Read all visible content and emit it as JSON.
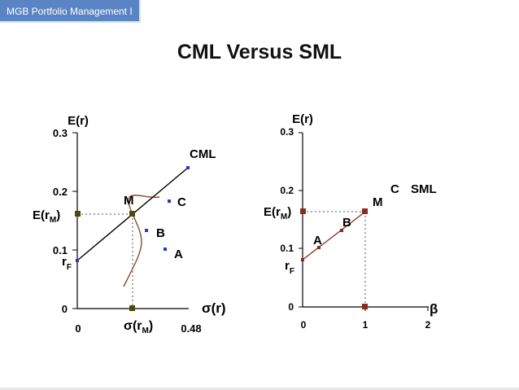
{
  "header": {
    "tag": "MGB Portfolio Management I"
  },
  "title": "CML Versus SML",
  "colors": {
    "tag_bg": "#5b84c4",
    "marker_blue": "#1f3cba",
    "curve": "#8b4a2a",
    "sml_line": "#8b3a28",
    "marker_olive": "#4a4a0c",
    "marker_red": "#8b2c1a"
  },
  "chart_data": [
    {
      "type": "line",
      "ylabel": "E(r)",
      "xlabel": "σ(r)",
      "yticks": [
        "0",
        "0.1",
        "0.2",
        "0.3"
      ],
      "xticks": [
        "0",
        "0.48"
      ],
      "ylim": [
        0,
        0.3
      ],
      "xlim": [
        0,
        0.48
      ],
      "rf": 0.083,
      "market": {
        "sigma": 0.2,
        "er": 0.16
      },
      "cml_end": {
        "sigma": 0.403,
        "er": 0.241
      },
      "frontier": [
        {
          "sigma": 0.2,
          "er": 0.04
        },
        {
          "sigma": 0.225,
          "er": 0.06
        },
        {
          "sigma": 0.22,
          "er": 0.1
        },
        {
          "sigma": 0.2,
          "er": 0.16
        },
        {
          "sigma": 0.215,
          "er": 0.182
        },
        {
          "sigma": 0.24,
          "er": 0.19
        }
      ],
      "points": [
        {
          "name": "M",
          "sigma": 0.2,
          "er": 0.16
        },
        {
          "name": "B",
          "sigma": 0.25,
          "er": 0.13
        },
        {
          "name": "C",
          "sigma": 0.32,
          "er": 0.182
        },
        {
          "name": "A",
          "sigma": 0.31,
          "er": 0.1
        }
      ],
      "labels": {
        "cml": "CML",
        "m": "M",
        "a": "A",
        "b": "B",
        "c": "C",
        "er_m": "E(r",
        "er_m_sub": "M",
        "er_m_close": ")",
        "rf": "r",
        "rf_sub": "F",
        "sigma_m": "σ(r",
        "sigma_m_sub": "M",
        "sigma_m_close": ")"
      }
    },
    {
      "type": "line",
      "ylabel": "E(r)",
      "xlabel": "β",
      "yticks": [
        "0",
        "0.1",
        "0.2",
        "0.3"
      ],
      "xticks": [
        "0",
        "1",
        "2"
      ],
      "ylim": [
        0,
        0.3
      ],
      "xlim": [
        0,
        2
      ],
      "rf": 0.08,
      "market": {
        "beta": 1,
        "er": 0.16
      },
      "points": [
        {
          "name": "A",
          "beta": 0.25,
          "er": 0.1
        },
        {
          "name": "B",
          "beta": 0.63,
          "er": 0.135
        },
        {
          "name": "M",
          "beta": 1,
          "er": 0.16
        }
      ],
      "labels": {
        "sml": "SML",
        "c": "C",
        "m": "M",
        "a": "A",
        "b": "B",
        "er_m": "E(r",
        "er_m_sub": "M",
        "er_m_close": ")",
        "rf": "r",
        "rf_sub": "F"
      }
    }
  ]
}
